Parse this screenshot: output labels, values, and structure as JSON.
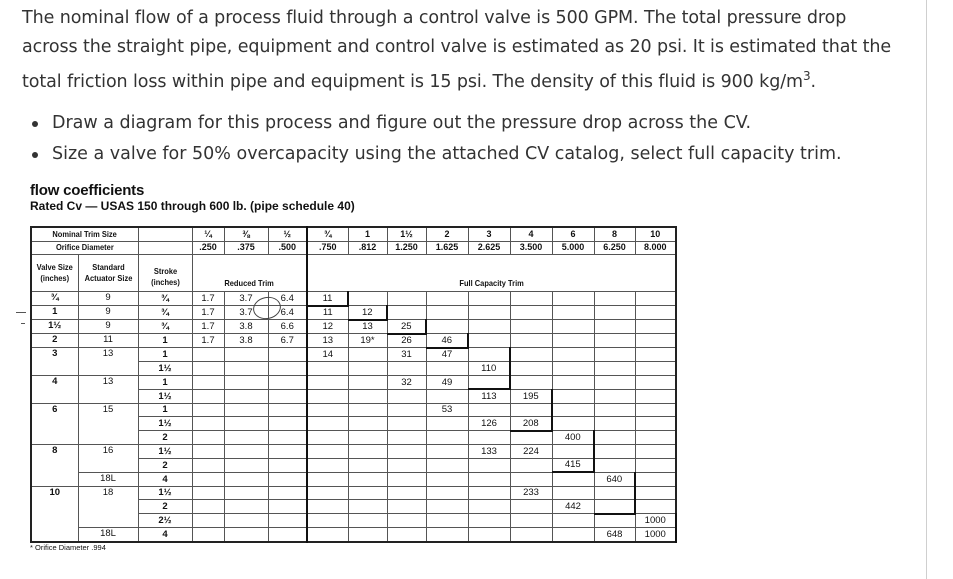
{
  "question": {
    "paragraph_lines": [
      "The nominal flow of a process fluid through a control valve is 500 GPM. The total pressure drop",
      "across the straight pipe, equipment and control valve is estimated as 20 psi. It is estimated that the",
      "total friction loss within pipe and equipment is 15 psi. The density of this fluid is 900 kg/m"
    ],
    "density_superscript": "3",
    "density_period": ".",
    "bullets": [
      "Draw a diagram for this process and figure out the pressure drop across the CV.",
      "Size a valve for 50% overcapacity using the attached CV catalog, select full capacity trim."
    ]
  },
  "catalog": {
    "title": "flow coefficients",
    "subtitle": "Rated Cv — USAS 150 through 600 lb. (pipe schedule 40)",
    "header": {
      "nominal_trim_label": "Nominal Trim Size",
      "orifice_label": "Orifice Diameter",
      "trim_sizes": [
        "¼",
        "⅜",
        "½",
        "¾",
        "1",
        "1½",
        "2",
        "3",
        "4",
        "6",
        "8",
        "10"
      ],
      "orifice_diameters": [
        ".250",
        ".375",
        ".500",
        ".750",
        ".812",
        "1.250",
        "1.625",
        "2.625",
        "3.500",
        "5.000",
        "6.250",
        "8.000"
      ],
      "valve_size_label": "Valve Size (inches)",
      "actuator_label": "Standard Actuator Size",
      "stroke_label": "Stroke (inches)",
      "reduced_trim_label": "Reduced Trim",
      "full_trim_label": "Full Capacity Trim"
    },
    "rows": [
      {
        "valve": "¾",
        "actuator": "9",
        "stroke": "¾",
        "cv": [
          "1.7",
          "3.7",
          "6.4",
          "11",
          "",
          "",
          "",
          "",
          "",
          "",
          "",
          ""
        ]
      },
      {
        "valve": "1",
        "actuator": "9",
        "stroke": "¾",
        "cv": [
          "1.7",
          "3.7",
          "6.4",
          "11",
          "12",
          "",
          "",
          "",
          "",
          "",
          "",
          ""
        ]
      },
      {
        "valve": "1½",
        "actuator": "9",
        "stroke": "¾",
        "cv": [
          "1.7",
          "3.8",
          "6.6",
          "12",
          "13",
          "25",
          "",
          "",
          "",
          "",
          "",
          ""
        ]
      },
      {
        "valve": "2",
        "actuator": "11",
        "stroke": "1",
        "cv": [
          "1.7",
          "3.8",
          "6.7",
          "13",
          "19*",
          "26",
          "46",
          "",
          "",
          "",
          "",
          ""
        ]
      },
      {
        "valve": "3",
        "actuator": "13",
        "stroke": "1",
        "cv": [
          "",
          "",
          "",
          "14",
          "",
          "31",
          "47",
          "",
          "",
          "",
          "",
          ""
        ]
      },
      {
        "valve": "",
        "actuator": "",
        "stroke": "1½",
        "cv": [
          "",
          "",
          "",
          "",
          "",
          "",
          "",
          "110",
          "",
          "",
          "",
          ""
        ]
      },
      {
        "valve": "4",
        "actuator": "13",
        "stroke": "1",
        "cv": [
          "",
          "",
          "",
          "",
          "",
          "32",
          "49",
          "",
          "",
          "",
          "",
          ""
        ]
      },
      {
        "valve": "",
        "actuator": "",
        "stroke": "1½",
        "cv": [
          "",
          "",
          "",
          "",
          "",
          "",
          "",
          "113",
          "195",
          "",
          "",
          ""
        ]
      },
      {
        "valve": "6",
        "actuator": "15",
        "stroke": "1",
        "cv": [
          "",
          "",
          "",
          "",
          "",
          "",
          "53",
          "",
          "",
          "",
          "",
          ""
        ]
      },
      {
        "valve": "",
        "actuator": "",
        "stroke": "1½",
        "cv": [
          "",
          "",
          "",
          "",
          "",
          "",
          "",
          "126",
          "208",
          "",
          "",
          ""
        ]
      },
      {
        "valve": "",
        "actuator": "",
        "stroke": "2",
        "cv": [
          "",
          "",
          "",
          "",
          "",
          "",
          "",
          "",
          "",
          "400",
          "",
          ""
        ]
      },
      {
        "valve": "8",
        "actuator": "16",
        "stroke": "1½",
        "cv": [
          "",
          "",
          "",
          "",
          "",
          "",
          "",
          "133",
          "224",
          "",
          "",
          ""
        ]
      },
      {
        "valve": "",
        "actuator": "",
        "stroke": "2",
        "cv": [
          "",
          "",
          "",
          "",
          "",
          "",
          "",
          "",
          "",
          "415",
          "",
          ""
        ]
      },
      {
        "valve": "",
        "actuator": "18L",
        "stroke": "4",
        "cv": [
          "",
          "",
          "",
          "",
          "",
          "",
          "",
          "",
          "",
          "",
          "640",
          ""
        ]
      },
      {
        "valve": "10",
        "actuator": "18",
        "stroke": "1½",
        "cv": [
          "",
          "",
          "",
          "",
          "",
          "",
          "",
          "",
          "233",
          "",
          "",
          ""
        ]
      },
      {
        "valve": "",
        "actuator": "",
        "stroke": "2",
        "cv": [
          "",
          "",
          "",
          "",
          "",
          "",
          "",
          "",
          "",
          "442",
          "",
          ""
        ]
      },
      {
        "valve": "",
        "actuator": "",
        "stroke": "2½",
        "cv": [
          "",
          "",
          "",
          "",
          "",
          "",
          "",
          "",
          "",
          "",
          "",
          "1000"
        ]
      },
      {
        "valve": "",
        "actuator": "18L",
        "stroke": "4",
        "cv": [
          "",
          "",
          "",
          "",
          "",
          "",
          "",
          "",
          "",
          "",
          "648",
          "1000"
        ]
      }
    ],
    "footnote": "* Orifice Diameter .994"
  }
}
